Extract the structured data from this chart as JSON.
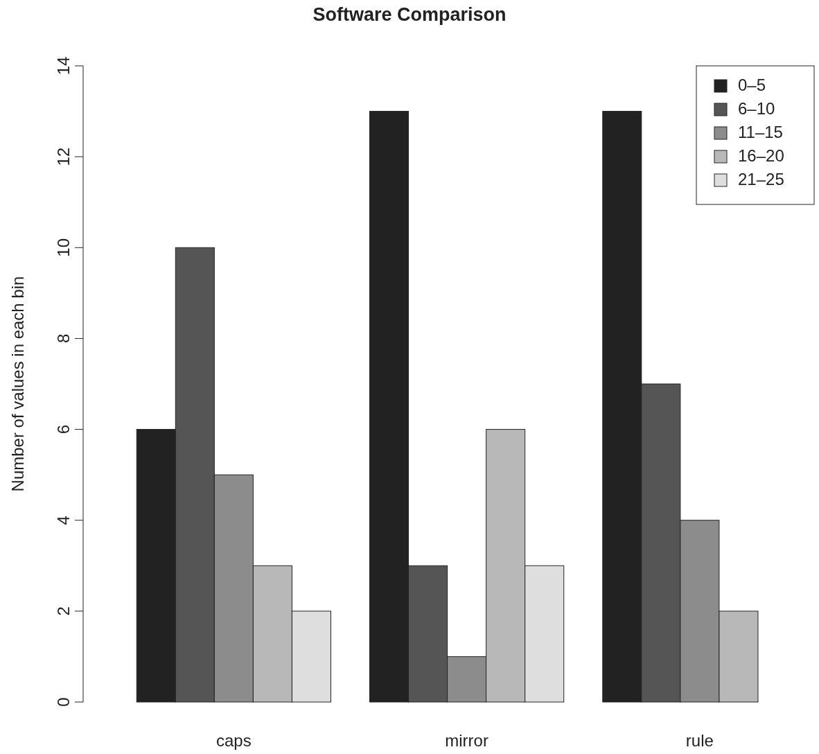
{
  "chart_data": {
    "type": "bar",
    "title": "Software Comparison",
    "ylabel": "Number of values in each bin",
    "categories": [
      "caps",
      "mirror",
      "rule"
    ],
    "series": [
      {
        "name": "0–5",
        "color": "#222222",
        "values": [
          6,
          13,
          13
        ]
      },
      {
        "name": "6–10",
        "color": "#555555",
        "values": [
          10,
          3,
          7
        ]
      },
      {
        "name": "11–15",
        "color": "#8c8c8c",
        "values": [
          5,
          1,
          4
        ]
      },
      {
        "name": "16–20",
        "color": "#b8b8b8",
        "values": [
          3,
          6,
          2
        ]
      },
      {
        "name": "21–25",
        "color": "#dedede",
        "values": [
          2,
          3,
          0
        ]
      }
    ],
    "ylim": [
      0,
      14
    ],
    "yticks": [
      0,
      2,
      4,
      6,
      8,
      10,
      12,
      14
    ],
    "grid": false,
    "legend": "top right"
  }
}
